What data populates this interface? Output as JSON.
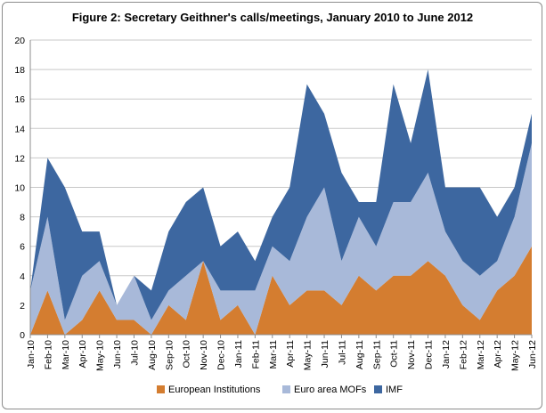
{
  "chart_data": {
    "type": "area",
    "stacked": true,
    "title": "Figure 2: Secretary Geithner's calls/meetings, January 2010 to June 2012",
    "xlabel": "",
    "ylabel": "",
    "ylim": [
      0,
      20
    ],
    "yticks": [
      0,
      2,
      4,
      6,
      8,
      10,
      12,
      14,
      16,
      18,
      20
    ],
    "grid": true,
    "legend_position": "bottom",
    "categories": [
      "Jan-10",
      "Feb-10",
      "Mar-10",
      "Apr-10",
      "May-10",
      "Jun-10",
      "Jul-10",
      "Aug-10",
      "Sep-10",
      "Oct-10",
      "Nov-10",
      "Dec-10",
      "Jan-11",
      "Feb-11",
      "Mar-11",
      "Apr-11",
      "May-11",
      "Jun-11",
      "Jul-11",
      "Aug-11",
      "Sep-11",
      "Oct-11",
      "Nov-11",
      "Dec-11",
      "Jan-12",
      "Feb-12",
      "Mar-12",
      "Apr-12",
      "May-12",
      "Jun-12"
    ],
    "series": [
      {
        "name": "European Institutions",
        "color": "#d47d30",
        "values": [
          0,
          3,
          0,
          1,
          3,
          1,
          1,
          0,
          2,
          1,
          5,
          1,
          2,
          0,
          4,
          2,
          3,
          3,
          2,
          4,
          3,
          4,
          4,
          5,
          4,
          2,
          1,
          3,
          4,
          6
        ]
      },
      {
        "name": "Euro area MOFs",
        "color": "#a8b9d9",
        "values": [
          3,
          5,
          1,
          3,
          2,
          1,
          3,
          1,
          1,
          3,
          0,
          2,
          1,
          3,
          2,
          3,
          5,
          7,
          3,
          4,
          3,
          5,
          5,
          6,
          3,
          3,
          3,
          2,
          4,
          7
        ]
      },
      {
        "name": "IMF",
        "color": "#3d67a0",
        "values": [
          0,
          4,
          9,
          3,
          2,
          0,
          0,
          2,
          4,
          5,
          5,
          3,
          4,
          2,
          2,
          5,
          9,
          5,
          6,
          1,
          3,
          8,
          4,
          7,
          3,
          5,
          6,
          3,
          2,
          2
        ]
      }
    ]
  }
}
